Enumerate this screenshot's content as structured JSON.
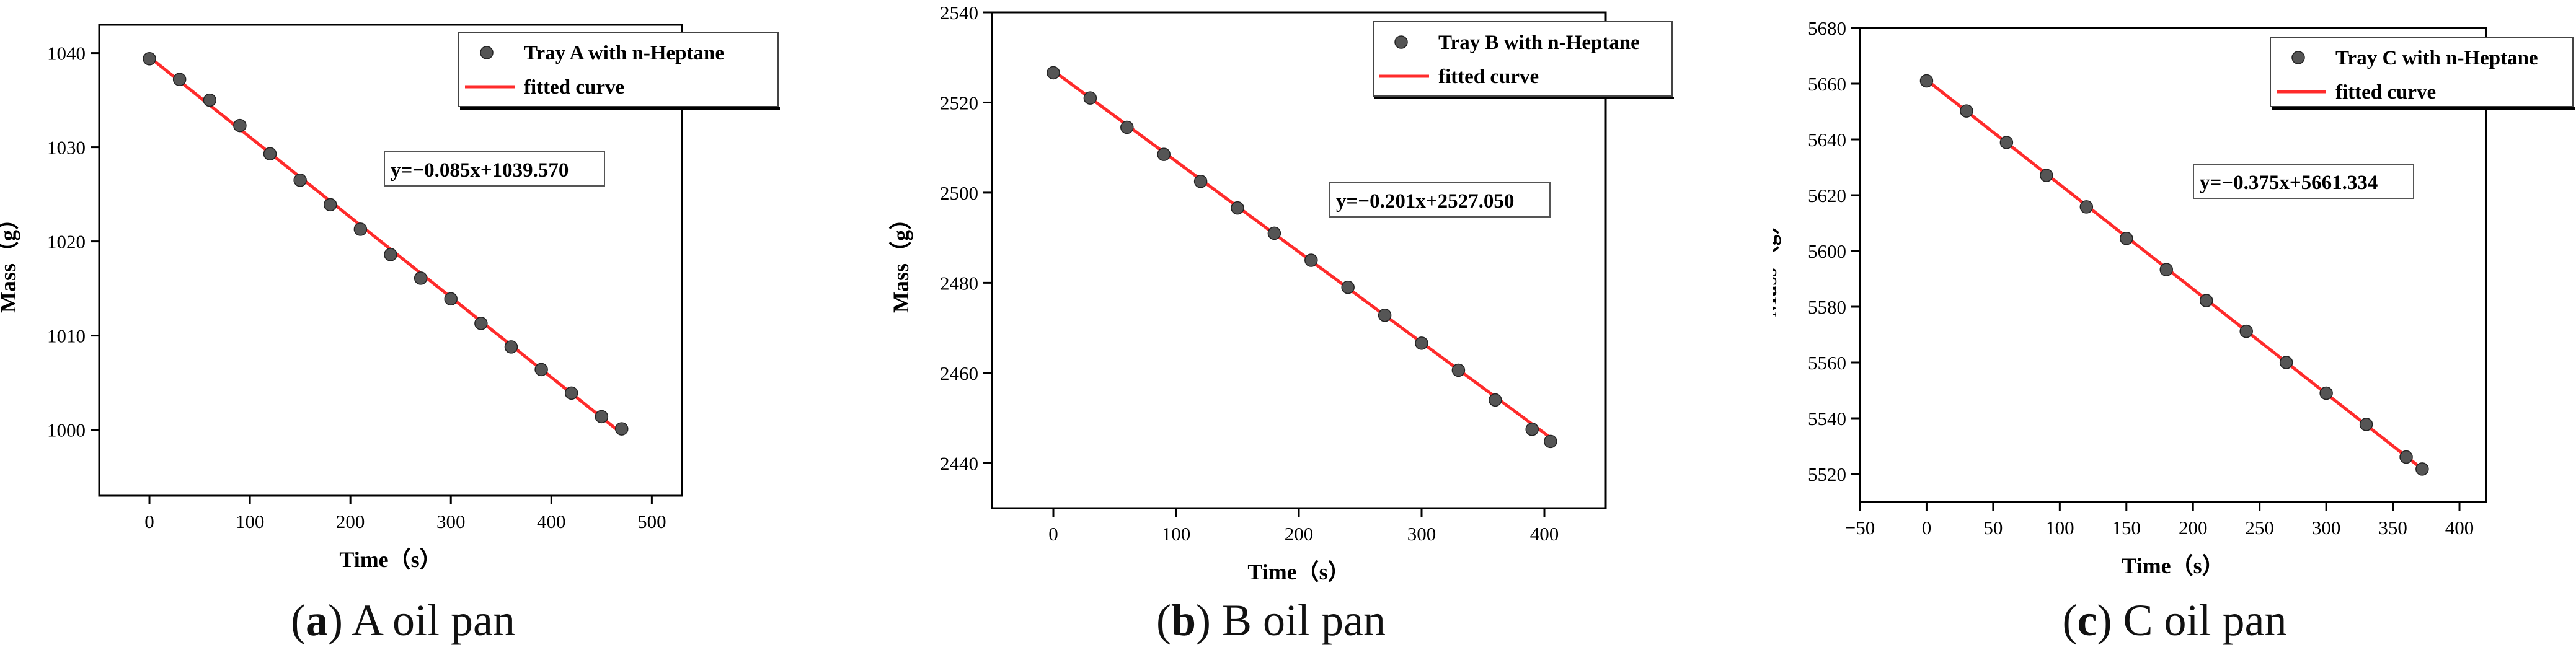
{
  "colors": {
    "point": "#555555",
    "fit": "#ff2b2b",
    "axis": "#000000"
  },
  "chart_data": [
    {
      "type": "scatter",
      "caption_letter": "a",
      "caption_text": "A oil pan",
      "xlabel": "Time（s）",
      "ylabel": "Mass（g）",
      "xlim": [
        -50,
        530
      ],
      "ylim": [
        993,
        1043
      ],
      "xticks": [
        0,
        100,
        200,
        300,
        400,
        500
      ],
      "yticks": [
        1000,
        1010,
        1020,
        1030,
        1040
      ],
      "legend": {
        "position": "top-right",
        "scatter_label": "Tray A with n-Heptane",
        "line_label": "fitted curve"
      },
      "equation": "y=−0.085x+1039.570",
      "fit": {
        "slope": -0.085,
        "intercept": 1039.57,
        "x_range": [
          0,
          470
        ]
      },
      "series": [
        {
          "name": "Tray A with n-Heptane",
          "x": [
            0,
            30,
            60,
            90,
            120,
            150,
            180,
            210,
            240,
            270,
            300,
            330,
            360,
            390,
            420,
            450,
            470
          ],
          "y": [
            1039.4,
            1037.2,
            1035.0,
            1032.3,
            1029.3,
            1026.5,
            1023.9,
            1021.3,
            1018.6,
            1016.1,
            1013.9,
            1011.3,
            1008.8,
            1006.4,
            1003.9,
            1001.4,
            1000.1
          ]
        }
      ]
    },
    {
      "type": "scatter",
      "caption_letter": "b",
      "caption_text": "B oil pan",
      "xlabel": "Time（s）",
      "ylabel": "Mass（g）",
      "xlim": [
        -50,
        450
      ],
      "ylim": [
        2430,
        2540
      ],
      "xticks": [
        0,
        100,
        200,
        300,
        400
      ],
      "yticks": [
        2440,
        2460,
        2480,
        2500,
        2520,
        2540
      ],
      "legend": {
        "position": "top-right",
        "scatter_label": "Tray B with n-Heptane",
        "line_label": "fitted curve"
      },
      "equation": "y=−0.201x+2527.050",
      "fit": {
        "slope": -0.201,
        "intercept": 2527.05,
        "x_range": [
          0,
          405
        ]
      },
      "series": [
        {
          "name": "Tray B with n-Heptane",
          "x": [
            0,
            30,
            60,
            90,
            120,
            150,
            180,
            210,
            240,
            270,
            300,
            330,
            360,
            390,
            405
          ],
          "y": [
            2526.6,
            2521.0,
            2514.5,
            2508.5,
            2502.5,
            2496.6,
            2491.0,
            2485.0,
            2479.0,
            2472.8,
            2466.6,
            2460.6,
            2454.0,
            2447.5,
            2444.8
          ]
        }
      ]
    },
    {
      "type": "scatter",
      "caption_letter": "c",
      "caption_text": "C oil pan",
      "xlabel": "Time（s）",
      "ylabel": "Mass（g）",
      "xlim": [
        -50,
        420
      ],
      "ylim": [
        5510,
        5680
      ],
      "xticks": [
        -50,
        0,
        50,
        100,
        150,
        200,
        250,
        300,
        350,
        400
      ],
      "yticks": [
        5520,
        5540,
        5560,
        5580,
        5600,
        5620,
        5640,
        5660,
        5680
      ],
      "legend": {
        "position": "top-right",
        "scatter_label": "Tray C with n-Heptane",
        "line_label": "fitted curve"
      },
      "equation": "y=−0.375x+5661.334",
      "fit": {
        "slope": -0.375,
        "intercept": 5661.334,
        "x_range": [
          0,
          372
        ]
      },
      "series": [
        {
          "name": "Tray C with n-Heptane",
          "x": [
            0,
            30,
            60,
            90,
            120,
            150,
            180,
            210,
            240,
            270,
            300,
            330,
            360,
            372
          ],
          "y": [
            5661.0,
            5650.2,
            5638.9,
            5627.1,
            5615.8,
            5604.5,
            5593.3,
            5582.2,
            5571.2,
            5560.0,
            5549.0,
            5537.8,
            5526.1,
            5521.8
          ]
        }
      ]
    }
  ]
}
